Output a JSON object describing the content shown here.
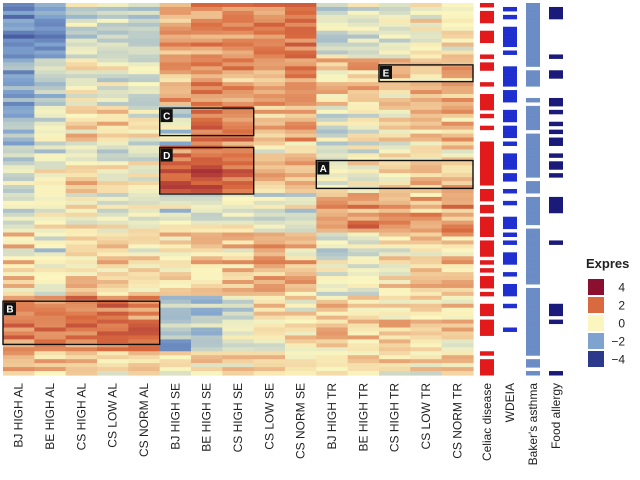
{
  "chart_data": {
    "type": "heatmap",
    "title": "",
    "columns": [
      "BJ HIGH AL",
      "BE HIGH AL",
      "CS HIGH AL",
      "CS LOW AL",
      "CS NORM AL",
      "BJ HIGH SE",
      "BE HIGH SE",
      "CS HIGH SE",
      "CS LOW SE",
      "CS NORM SE",
      "BJ HIGH TR",
      "BE HIGH TR",
      "CS HIGH TR",
      "CS LOW TR",
      "CS NORM TR"
    ],
    "annotation_tracks": [
      "Celiac disease",
      "WDEIA",
      "Baker's asthma",
      "Food allergy"
    ],
    "annotation_colors": {
      "Celiac disease": "#e31a1c",
      "WDEIA": "#1f2fd0",
      "Baker's asthma": "#6b8cc4",
      "Food allergy": "#1a1a7a"
    },
    "legend": {
      "title": "Expres",
      "ticks": [
        "4",
        "2",
        "0",
        "−2",
        "−4"
      ],
      "values": [
        4,
        2,
        0,
        -2,
        -4
      ],
      "colors": [
        "#8b1030",
        "#d96a3f",
        "#fbf6c0",
        "#7fa3cf",
        "#2d3a8c"
      ]
    },
    "value_range": [
      -4,
      4
    ],
    "row_groups": [
      {
        "rows": 14,
        "levels": [
          -2.4,
          -2.0,
          -0.6,
          -0.6,
          -0.9,
          1.1,
          1.4,
          1.6,
          1.6,
          1.8,
          -0.6,
          -0.3,
          -0.2,
          0.2,
          0.2
        ]
      },
      {
        "rows": 12,
        "levels": [
          -2.0,
          -1.2,
          -0.3,
          -0.6,
          -0.7,
          0.9,
          1.2,
          1.2,
          1.1,
          1.4,
          0.4,
          0.6,
          0.5,
          0.7,
          0.9
        ]
      },
      {
        "rows": 10,
        "levels": [
          -1.6,
          -0.5,
          0.5,
          0.2,
          -0.3,
          -0.9,
          1.5,
          1.6,
          0.6,
          0.9,
          -0.8,
          -0.4,
          0.2,
          0.4,
          0.6
        ]
      },
      {
        "rows": 12,
        "levels": [
          -1.0,
          -0.4,
          0.3,
          -0.2,
          -0.4,
          2.0,
          2.2,
          1.8,
          0.4,
          0.6,
          -0.6,
          -0.2,
          0.1,
          0.3,
          0.5
        ]
      },
      {
        "rows": 10,
        "levels": [
          -0.3,
          0.1,
          -0.2,
          -0.4,
          -0.5,
          -0.7,
          -0.5,
          -0.2,
          -0.3,
          -0.4,
          1.2,
          1.4,
          1.3,
          1.1,
          1.3
        ]
      },
      {
        "rows": 16,
        "levels": [
          0.4,
          -0.6,
          0.4,
          0.2,
          0.1,
          0.2,
          0.3,
          0.5,
          1.0,
          0.6,
          -0.4,
          -0.6,
          0.2,
          0.4,
          0.5
        ]
      },
      {
        "rows": 14,
        "levels": [
          1.6,
          1.7,
          1.8,
          1.7,
          1.8,
          -1.6,
          -1.3,
          -0.6,
          0.3,
          0.2,
          0.6,
          0.5,
          0.6,
          0.6,
          0.5
        ]
      },
      {
        "rows": 6,
        "levels": [
          0.9,
          0.7,
          0.6,
          0.5,
          0.6,
          0.2,
          0.4,
          0.3,
          0.3,
          0.2,
          0.4,
          0.5,
          0.4,
          0.3,
          0.4
        ]
      }
    ],
    "highlight_boxes": [
      {
        "label": "A",
        "columns": [
          "BJ HIGH TR",
          "CS NORM TR"
        ],
        "row_range": [
          0.4235,
          0.4985
        ]
      },
      {
        "label": "B",
        "columns": [
          "BJ HIGH AL",
          "CS NORM AL"
        ],
        "row_range": [
          0.8015,
          0.9175
        ]
      },
      {
        "label": "C",
        "columns": [
          "BJ HIGH SE",
          "CS HIGH SE"
        ],
        "row_range": [
          0.2825,
          0.3565
        ]
      },
      {
        "label": "D",
        "columns": [
          "BJ HIGH SE",
          "CS HIGH SE"
        ],
        "row_range": [
          0.3885,
          0.5135
        ]
      },
      {
        "label": "E",
        "columns": [
          "CS HIGH TR",
          "CS NORM TR"
        ],
        "row_range": [
          0.1665,
          0.2115
        ]
      }
    ]
  }
}
